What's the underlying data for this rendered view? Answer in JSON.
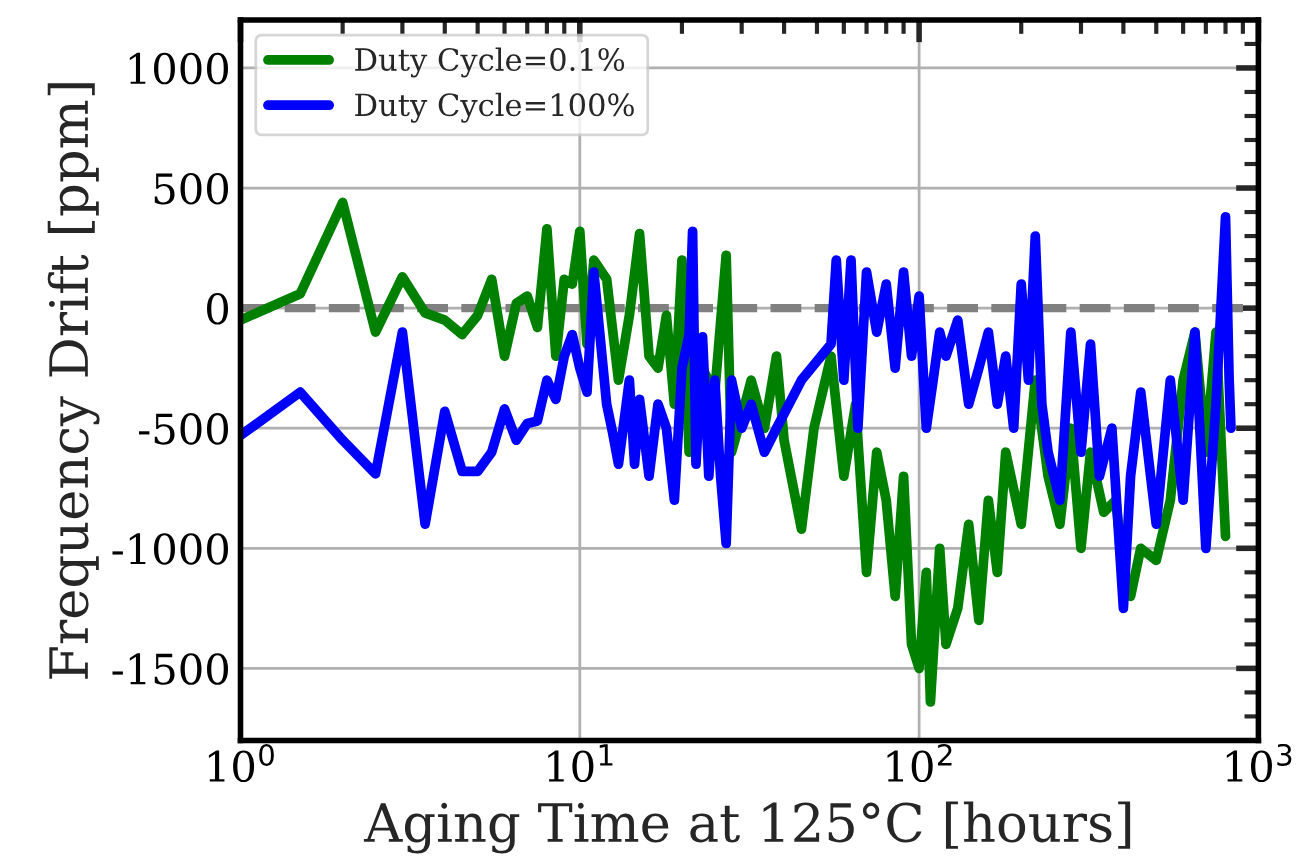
{
  "chart_data": {
    "type": "line",
    "xlabel": "Aging Time at 125°C [hours]",
    "ylabel": "Frequency Drift [ppm]",
    "log": "x",
    "xlim": [
      1,
      1000
    ],
    "xticks": [
      {
        "value": 1,
        "label": "10$^{0}$"
      },
      {
        "value": 10,
        "label": "10$^{1}$"
      },
      {
        "value": 100,
        "label": "10$^{2}$"
      },
      {
        "value": 1000,
        "label": "10$^{3}$"
      }
    ],
    "ylim": [
      -1800,
      1200
    ],
    "yticks": [
      -1500,
      -1000,
      -500,
      0,
      500,
      1000
    ],
    "grid": true,
    "legend": "top left",
    "line_style": "solid",
    "marker": "none",
    "ref_lines": [
      {
        "axis": "y",
        "value": 0,
        "color": "#808080",
        "line_style": "dashed"
      }
    ],
    "series": [
      {
        "name": "Duty Cycle=0.1%",
        "color": "#008000",
        "x": [
          1,
          1.5,
          2,
          2.5,
          3,
          3.5,
          4,
          4.5,
          5,
          5.5,
          6,
          6.5,
          7,
          7.5,
          8,
          8.5,
          9,
          9.5,
          10,
          10.5,
          11,
          12,
          13,
          14,
          15,
          16,
          17,
          18,
          19,
          20,
          21,
          22,
          25,
          27,
          28,
          30,
          32,
          35,
          38,
          40,
          45,
          49,
          55,
          60,
          65,
          70,
          75,
          80,
          85,
          90,
          95,
          100,
          105,
          108,
          115,
          120,
          130,
          140,
          150,
          160,
          170,
          180,
          200,
          220,
          240,
          260,
          280,
          300,
          320,
          350,
          380,
          400,
          420,
          450,
          500,
          550,
          600,
          650,
          700,
          750,
          800
        ],
        "values": [
          -50,
          60,
          440,
          -100,
          130,
          -20,
          -50,
          -110,
          -30,
          120,
          -200,
          20,
          50,
          -80,
          330,
          -200,
          120,
          100,
          320,
          -150,
          200,
          120,
          -300,
          -30,
          310,
          -200,
          -250,
          -30,
          -400,
          200,
          -600,
          -200,
          -350,
          220,
          -600,
          -450,
          -300,
          -500,
          -200,
          -550,
          -920,
          -500,
          -200,
          -700,
          -400,
          -1100,
          -600,
          -800,
          -1200,
          -700,
          -1400,
          -1500,
          -1100,
          -1640,
          -1000,
          -1400,
          -1250,
          -900,
          -1300,
          -800,
          -1100,
          -600,
          -900,
          -300,
          -700,
          -900,
          -500,
          -1000,
          -600,
          -850,
          -800,
          -1100,
          -1200,
          -1000,
          -1050,
          -800,
          -300,
          -100,
          -600,
          -100,
          -950
        ]
      },
      {
        "name": "Duty Cycle=100%",
        "color": "#0000ff",
        "x": [
          1,
          1.5,
          2,
          2.5,
          3,
          3.5,
          4,
          4.5,
          5,
          5.5,
          6,
          6.5,
          7,
          7.5,
          8,
          8.5,
          9,
          9.5,
          10,
          10.5,
          11,
          12,
          12.5,
          13,
          14,
          14.5,
          15,
          16,
          17,
          18,
          19,
          20,
          21,
          21.5,
          22,
          23,
          24,
          25,
          26,
          27,
          28,
          30,
          32,
          35,
          38,
          45,
          55,
          57,
          60,
          63,
          66,
          70,
          75,
          80,
          85,
          90,
          95,
          100,
          105,
          110,
          115,
          120,
          130,
          140,
          150,
          160,
          170,
          180,
          190,
          200,
          210,
          220,
          230,
          240,
          260,
          280,
          300,
          320,
          340,
          370,
          400,
          420,
          450,
          500,
          550,
          600,
          650,
          700,
          750,
          800,
          820,
          830
        ],
        "values": [
          -530,
          -350,
          -550,
          -690,
          -100,
          -900,
          -430,
          -680,
          -680,
          -600,
          -420,
          -550,
          -480,
          -470,
          -300,
          -380,
          -200,
          -110,
          -250,
          -350,
          150,
          -400,
          -520,
          -650,
          -300,
          -650,
          -380,
          -700,
          -400,
          -500,
          -800,
          -250,
          -110,
          320,
          -650,
          -120,
          -700,
          -300,
          -700,
          -980,
          -300,
          -500,
          -400,
          -600,
          -500,
          -300,
          -150,
          200,
          -300,
          200,
          -500,
          150,
          -100,
          100,
          -250,
          150,
          -200,
          50,
          -500,
          -300,
          -100,
          -200,
          -50,
          -400,
          -250,
          -100,
          -400,
          -200,
          -500,
          100,
          -300,
          300,
          -400,
          -600,
          -800,
          -100,
          -600,
          -150,
          -700,
          -500,
          -1250,
          -700,
          -350,
          -900,
          -300,
          -800,
          -100,
          -1000,
          -400,
          380,
          -300,
          -500
        ]
      }
    ]
  }
}
